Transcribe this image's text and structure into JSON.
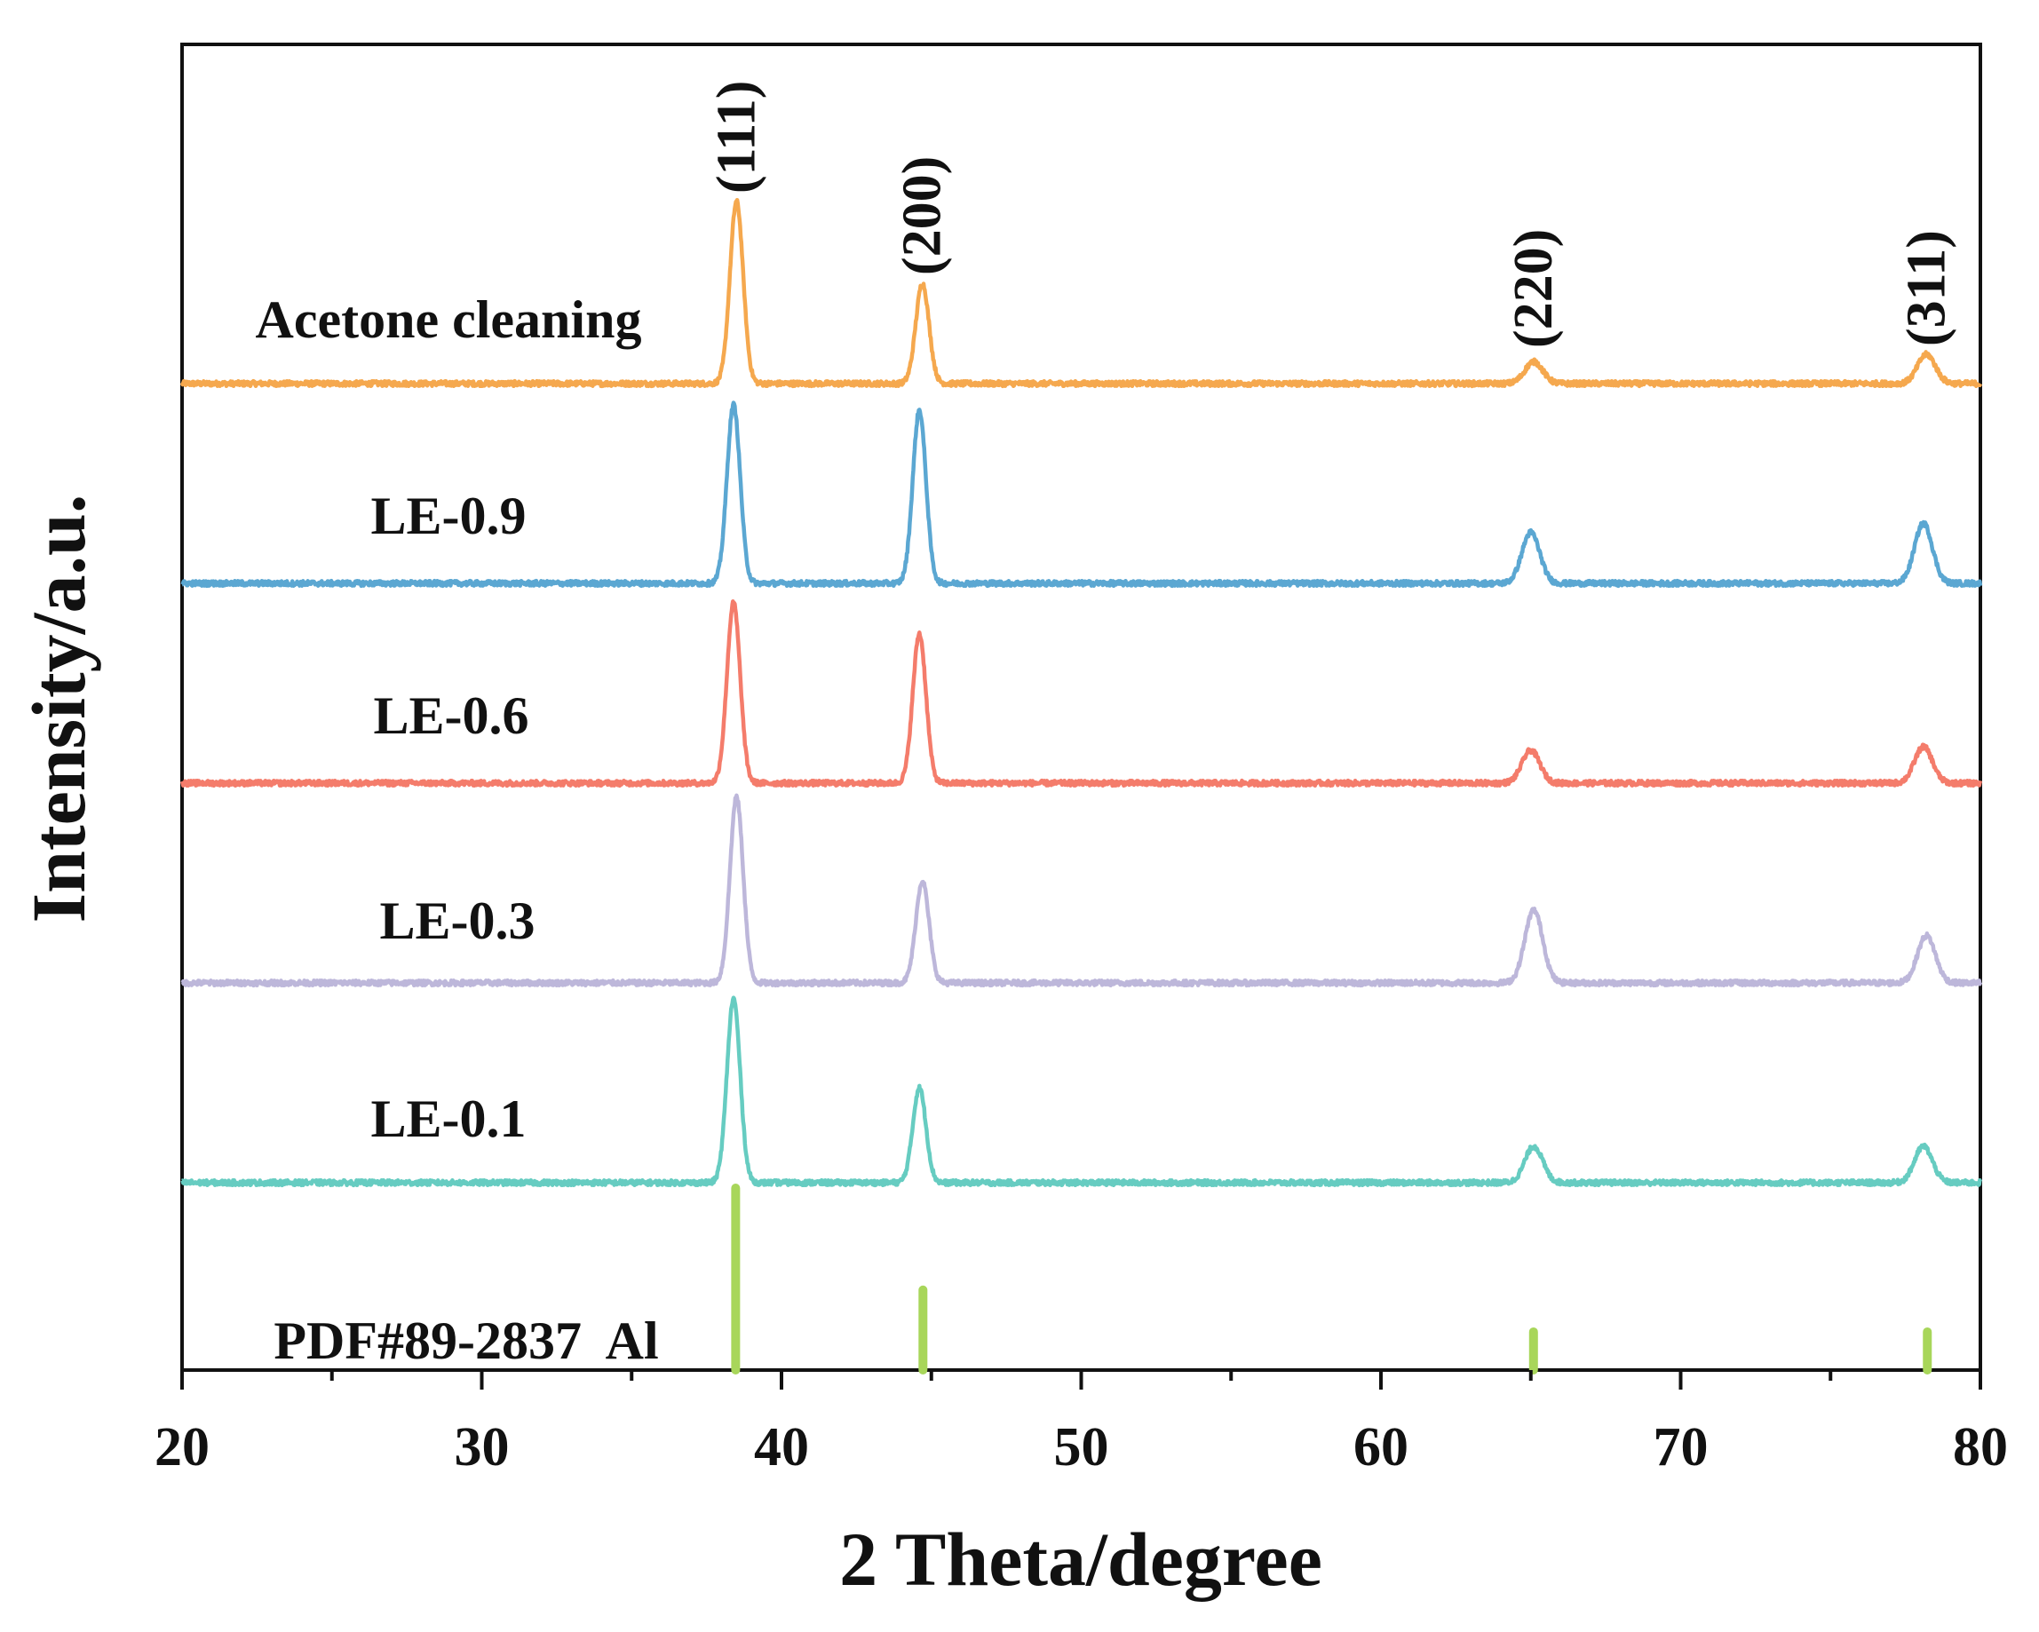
{
  "chart_data": {
    "type": "line",
    "xlabel": "2 Theta/degree",
    "ylabel": "Intensity/a.u.",
    "xlim": [
      20,
      80
    ],
    "xticks": [
      20,
      30,
      40,
      50,
      60,
      70,
      80
    ],
    "grid": false,
    "legend": "none",
    "peak_labels": [
      {
        "label": "(111)",
        "x": 38.5
      },
      {
        "label": "(200)",
        "x": 44.7
      },
      {
        "label": "(220)",
        "x": 65.1
      },
      {
        "label": "(311)",
        "x": 78.2
      }
    ],
    "series": [
      {
        "name": "Acetone cleaning",
        "color": "#F5A84E",
        "offset": 4,
        "peaks": [
          {
            "x": 38.5,
            "h": 1.0
          },
          {
            "x": 44.7,
            "h": 0.55
          },
          {
            "x": 65.1,
            "h": 0.12
          },
          {
            "x": 78.2,
            "h": 0.16
          }
        ]
      },
      {
        "name": "LE-0.9",
        "color": "#5BA7D2",
        "offset": 3,
        "peaks": [
          {
            "x": 38.4,
            "h": 0.98
          },
          {
            "x": 44.6,
            "h": 0.95
          },
          {
            "x": 65.0,
            "h": 0.28
          },
          {
            "x": 78.1,
            "h": 0.33
          }
        ]
      },
      {
        "name": "LE-0.6",
        "color": "#F47C6B",
        "offset": 2,
        "peaks": [
          {
            "x": 38.4,
            "h": 0.99
          },
          {
            "x": 44.6,
            "h": 0.82
          },
          {
            "x": 65.0,
            "h": 0.18
          },
          {
            "x": 78.1,
            "h": 0.2
          }
        ]
      },
      {
        "name": "LE-0.3",
        "color": "#BDB7DA",
        "offset": 1,
        "peaks": [
          {
            "x": 38.5,
            "h": 1.02
          },
          {
            "x": 44.7,
            "h": 0.56
          },
          {
            "x": 65.1,
            "h": 0.4
          },
          {
            "x": 78.2,
            "h": 0.26
          }
        ]
      },
      {
        "name": "LE-0.1",
        "color": "#66CCC1",
        "offset": 0,
        "peaks": [
          {
            "x": 38.4,
            "h": 1.01
          },
          {
            "x": 44.6,
            "h": 0.52
          },
          {
            "x": 65.1,
            "h": 0.2
          },
          {
            "x": 78.1,
            "h": 0.2
          }
        ]
      }
    ],
    "reference": {
      "name": "PDF#89-2837  Al",
      "color": "#A8D65A",
      "lines": [
        {
          "x": 38.47,
          "h": 1.0
        },
        {
          "x": 44.72,
          "h": 0.44
        },
        {
          "x": 65.09,
          "h": 0.21
        },
        {
          "x": 78.23,
          "h": 0.21
        }
      ]
    }
  }
}
